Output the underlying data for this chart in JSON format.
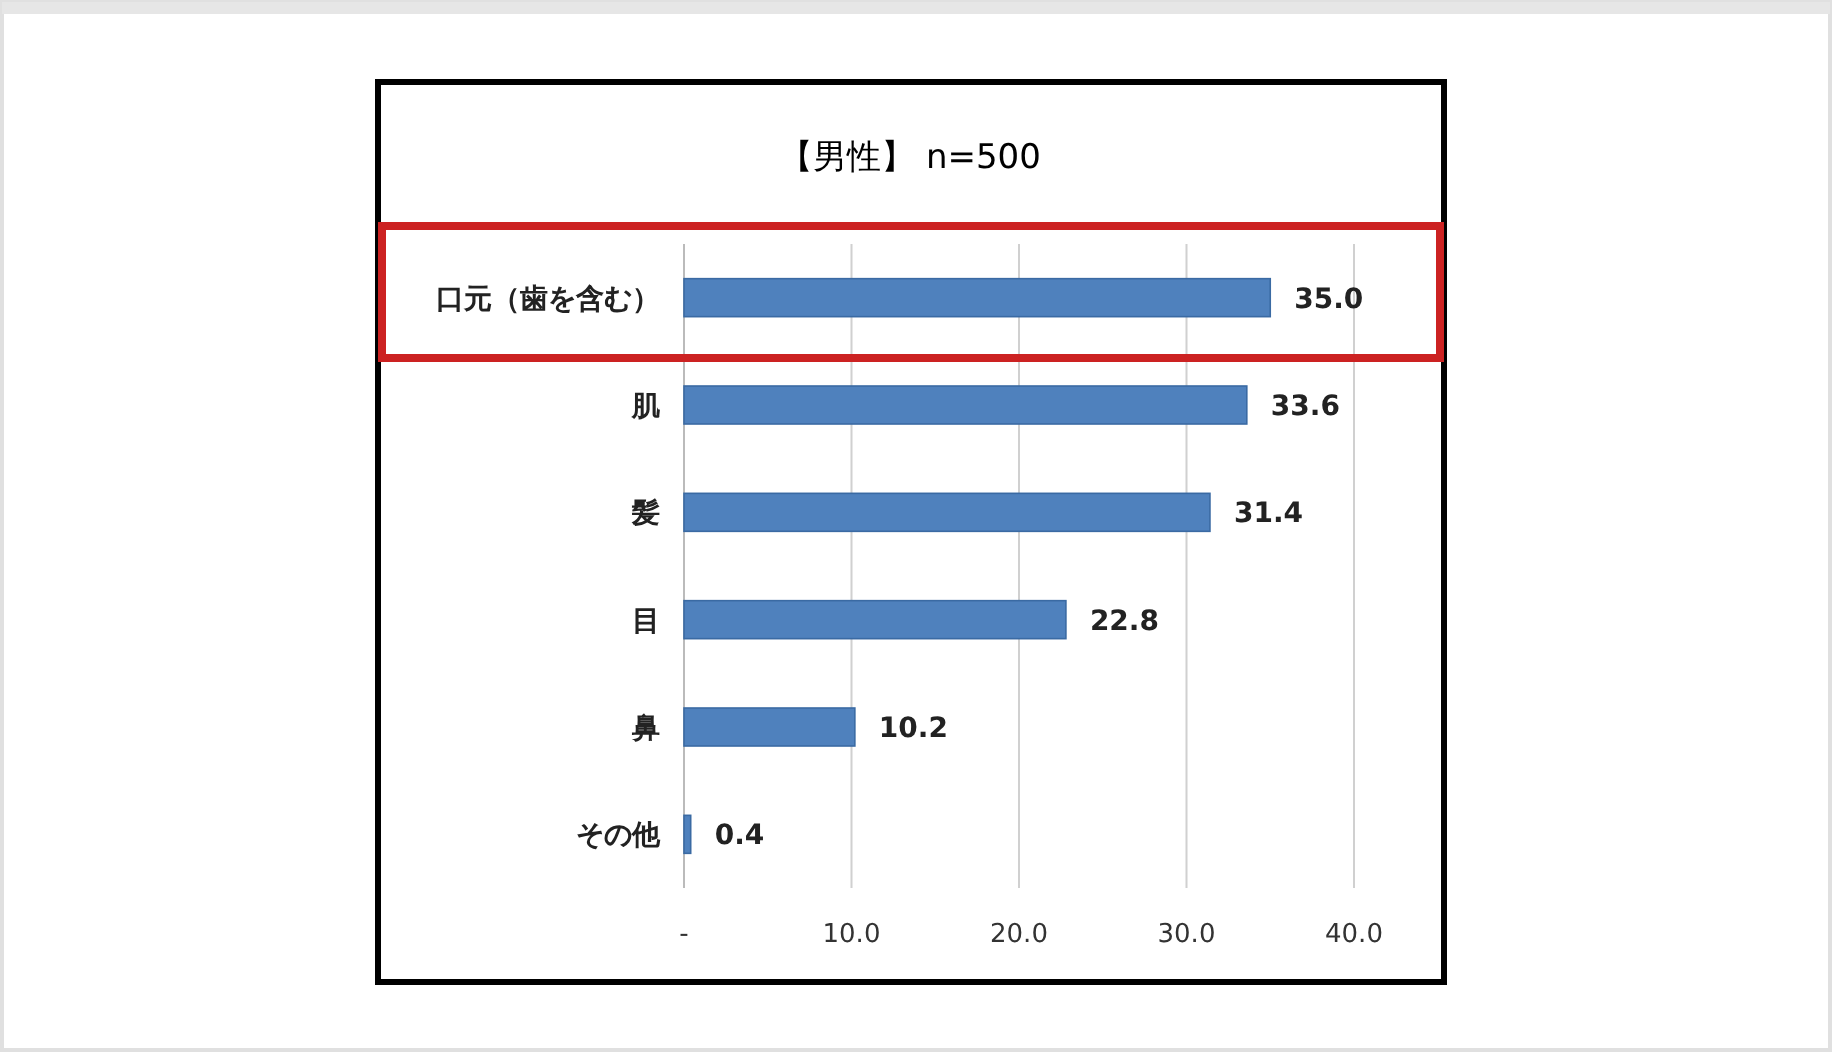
{
  "chart_data": {
    "type": "bar",
    "orientation": "horizontal",
    "title": "【男性】 n=500",
    "categories": [
      "口元（歯を含む）",
      "肌",
      "髪",
      "目",
      "鼻",
      "その他"
    ],
    "values": [
      35.0,
      33.6,
      31.4,
      22.8,
      10.2,
      0.4
    ],
    "value_labels": [
      "35.0",
      "33.6",
      "31.4",
      "22.8",
      "10.2",
      "0.4"
    ],
    "color": "#4f81bd",
    "xlim": [
      0,
      40
    ],
    "xticks": [
      {
        "value": 0,
        "label": "-"
      },
      {
        "value": 10,
        "label": "10.0"
      },
      {
        "value": 20,
        "label": "20.0"
      },
      {
        "value": 30,
        "label": "30.0"
      },
      {
        "value": 40,
        "label": "40.0"
      }
    ],
    "grid": "x"
  }
}
